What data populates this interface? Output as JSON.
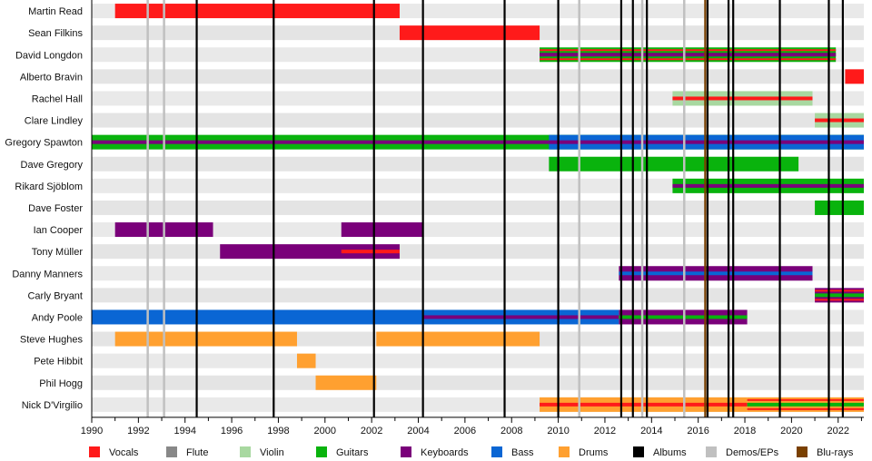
{
  "chart_data": {
    "type": "timeline",
    "title": "",
    "x_range": [
      1990,
      2023.1
    ],
    "x_ticks": [
      "1990",
      "1992",
      "1994",
      "1996",
      "1998",
      "2000",
      "2002",
      "2004",
      "2006",
      "2008",
      "2010",
      "2012",
      "2014",
      "2016",
      "2018",
      "2020",
      "2022"
    ],
    "grid": "alternating row bands",
    "legend_placement": "bottom",
    "legend": [
      {
        "role": "vocals",
        "label": "Vocals",
        "color": "#ff1a1a"
      },
      {
        "role": "flute",
        "label": "Flute",
        "color": "#888888"
      },
      {
        "role": "violin",
        "label": "Violin",
        "color": "#a8d8a0"
      },
      {
        "role": "guitars",
        "label": "Guitars",
        "color": "#09b30d"
      },
      {
        "role": "keyboards",
        "label": "Keyboards",
        "color": "#7a007a"
      },
      {
        "role": "bass",
        "label": "Bass",
        "color": "#0a66d4"
      },
      {
        "role": "drums",
        "label": "Drums",
        "color": "#ffa030"
      },
      {
        "role": "albums",
        "label": "Albums",
        "color": "#000000"
      },
      {
        "role": "demos",
        "label": "Demos/EPs",
        "color": "#c0c0c0"
      },
      {
        "role": "blurays",
        "label": "Blu-rays",
        "color": "#7a4000"
      }
    ],
    "members": [
      {
        "name": "Martin Read",
        "bars": [
          {
            "start": 1991.0,
            "end": 2003.2,
            "main": "vocals"
          }
        ]
      },
      {
        "name": "Sean Filkins",
        "bars": [
          {
            "start": 2003.2,
            "end": 2009.2,
            "main": "vocals"
          }
        ]
      },
      {
        "name": "David Longdon",
        "bars": [
          {
            "start": 2009.2,
            "end": 2021.9,
            "main": "guitars",
            "stripes": [
              {
                "role": "vocals",
                "pos": "edge"
              },
              {
                "role": "keyboards",
                "pos": "center"
              }
            ]
          }
        ]
      },
      {
        "name": "Alberto Bravin",
        "bars": [
          {
            "start": 2022.3,
            "end": 2023.1,
            "main": "vocals"
          }
        ]
      },
      {
        "name": "Rachel Hall",
        "bars": [
          {
            "start": 2014.9,
            "end": 2020.9,
            "main": "violin",
            "stripes": [
              {
                "role": "vocals",
                "pos": "center"
              }
            ]
          }
        ]
      },
      {
        "name": "Clare Lindley",
        "bars": [
          {
            "start": 2021.0,
            "end": 2023.1,
            "main": "violin",
            "stripes": [
              {
                "role": "vocals",
                "pos": "center"
              }
            ]
          }
        ]
      },
      {
        "name": "Gregory Spawton",
        "bars": [
          {
            "start": 1990.0,
            "end": 2023.1,
            "main": "guitars",
            "stripes": [
              {
                "role": "keyboards",
                "pos": "center"
              }
            ]
          },
          {
            "start": 2009.6,
            "end": 2023.1,
            "main": "bass",
            "stripes": [
              {
                "role": "keyboards",
                "pos": "center"
              }
            ]
          }
        ]
      },
      {
        "name": "Dave Gregory",
        "bars": [
          {
            "start": 2009.6,
            "end": 2020.3,
            "main": "guitars"
          }
        ]
      },
      {
        "name": "Rikard Sjöblom",
        "bars": [
          {
            "start": 2014.9,
            "end": 2023.1,
            "main": "guitars",
            "stripes": [
              {
                "role": "keyboards",
                "pos": "center"
              }
            ]
          }
        ]
      },
      {
        "name": "Dave Foster",
        "bars": [
          {
            "start": 2021.0,
            "end": 2023.1,
            "main": "guitars"
          }
        ]
      },
      {
        "name": "Ian Cooper",
        "bars": [
          {
            "start": 1991.0,
            "end": 1995.2,
            "main": "keyboards"
          },
          {
            "start": 2000.7,
            "end": 2004.2,
            "main": "keyboards"
          }
        ]
      },
      {
        "name": "Tony Müller",
        "bars": [
          {
            "start": 1995.5,
            "end": 2003.2,
            "main": "keyboards",
            "stripes": [
              {
                "role": "vocals",
                "pos": "center",
                "start": 2000.7
              }
            ]
          }
        ]
      },
      {
        "name": "Danny Manners",
        "bars": [
          {
            "start": 2012.6,
            "end": 2020.9,
            "main": "keyboards",
            "stripes": [
              {
                "role": "bass",
                "pos": "center"
              }
            ]
          }
        ]
      },
      {
        "name": "Carly Bryant",
        "bars": [
          {
            "start": 2021.0,
            "end": 2023.1,
            "main": "keyboards",
            "stripes": [
              {
                "role": "vocals",
                "pos": "edge"
              },
              {
                "role": "guitars",
                "pos": "center"
              }
            ]
          }
        ]
      },
      {
        "name": "Andy Poole",
        "bars": [
          {
            "start": 1990.0,
            "end": 2012.6,
            "main": "bass",
            "stripes": [
              {
                "role": "keyboards",
                "pos": "center",
                "start": 2004.2
              }
            ]
          },
          {
            "start": 2012.6,
            "end": 2018.1,
            "main": "keyboards",
            "stripes": [
              {
                "role": "guitars",
                "pos": "center"
              }
            ]
          }
        ]
      },
      {
        "name": "Steve Hughes",
        "bars": [
          {
            "start": 1991.0,
            "end": 1998.8,
            "main": "drums"
          },
          {
            "start": 2002.2,
            "end": 2009.2,
            "main": "drums"
          }
        ]
      },
      {
        "name": "Pete Hibbit",
        "bars": [
          {
            "start": 1998.8,
            "end": 1999.6,
            "main": "drums"
          }
        ]
      },
      {
        "name": "Phil Hogg",
        "bars": [
          {
            "start": 1999.6,
            "end": 2002.2,
            "main": "drums"
          }
        ]
      },
      {
        "name": "Nick D'Virgilio",
        "bars": [
          {
            "start": 2009.2,
            "end": 2018.1,
            "main": "drums",
            "stripes": [
              {
                "role": "vocals",
                "pos": "center"
              }
            ]
          },
          {
            "start": 2018.1,
            "end": 2023.1,
            "main": "drums",
            "stripes": [
              {
                "role": "vocals",
                "pos": "edge"
              },
              {
                "role": "guitars",
                "pos": "center"
              }
            ]
          }
        ]
      }
    ],
    "events": {
      "albums": [
        1994.5,
        1997.8,
        2002.1,
        2004.2,
        2007.7,
        2010.0,
        2012.7,
        2013.2,
        2013.8,
        2016.4,
        2017.3,
        2017.5,
        2019.5,
        2021.6,
        2022.2
      ],
      "demos": [
        1992.4,
        1993.1,
        2010.9,
        2013.6,
        2015.4
      ],
      "blurays": [
        2016.3
      ]
    }
  }
}
